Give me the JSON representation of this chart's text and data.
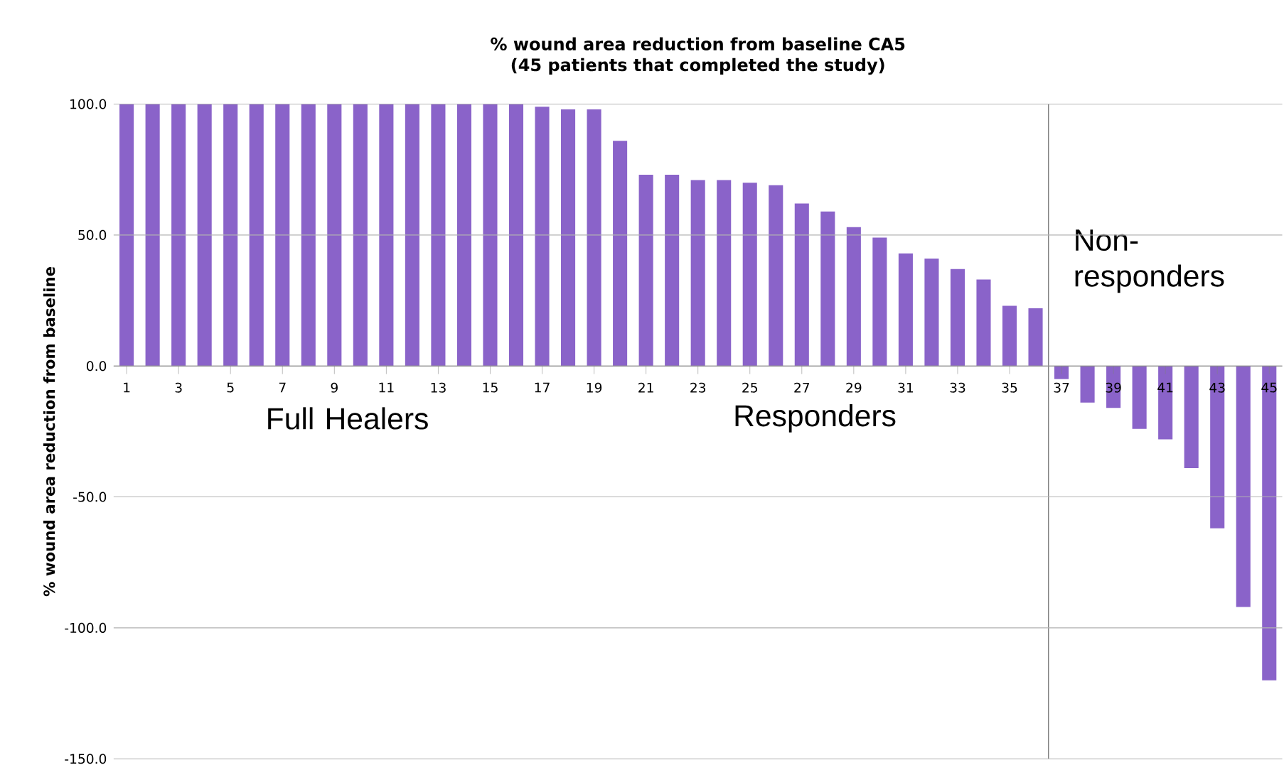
{
  "chart_data": {
    "type": "bar",
    "title": "% wound area reduction from baseline CA5",
    "subtitle": "(45 patients that completed the study)",
    "ylabel": "% wound area reduction from baseline",
    "x": [
      1,
      2,
      3,
      4,
      5,
      6,
      7,
      8,
      9,
      10,
      11,
      12,
      13,
      14,
      15,
      16,
      17,
      18,
      19,
      20,
      21,
      22,
      23,
      24,
      25,
      26,
      27,
      28,
      29,
      30,
      31,
      32,
      33,
      34,
      35,
      36,
      37,
      38,
      39,
      40,
      41,
      42,
      43,
      44,
      45
    ],
    "values": [
      100,
      100,
      100,
      100,
      100,
      100,
      100,
      100,
      100,
      100,
      100,
      100,
      100,
      100,
      100,
      100,
      99,
      98,
      98,
      86,
      73,
      73,
      71,
      71,
      70,
      69,
      62,
      59,
      53,
      49,
      43,
      41,
      37,
      33,
      23,
      22,
      -5,
      -14,
      -16,
      -24,
      -28,
      -39,
      -62,
      -92,
      -120
    ],
    "color": "#8a63c9",
    "xlim": [
      0.5,
      45.5
    ],
    "xticks": [
      1,
      3,
      5,
      7,
      9,
      11,
      13,
      15,
      17,
      19,
      21,
      23,
      25,
      27,
      29,
      31,
      33,
      35,
      37,
      39,
      41,
      43,
      45
    ],
    "ylim": [
      -150,
      100
    ],
    "yticks": [
      {
        "value": -150,
        "label": "-150.0"
      },
      {
        "value": -100,
        "label": "-100.0"
      },
      {
        "value": -50,
        "label": "-50.0"
      },
      {
        "value": 0,
        "label": "0.0"
      },
      {
        "value": 50,
        "label": "50.0"
      },
      {
        "value": 100,
        "label": "100.0"
      }
    ],
    "grid": "y",
    "ref_lines": [
      {
        "axis": "x",
        "value": 36.5,
        "color": "#555555"
      }
    ],
    "annotations": [
      "Full Healers",
      "Responders",
      "Non-responders"
    ]
  }
}
